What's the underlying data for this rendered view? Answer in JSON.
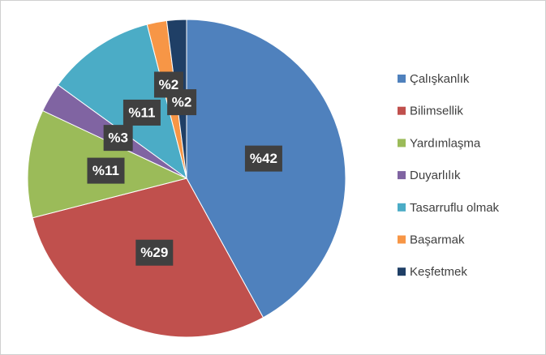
{
  "chart_data": {
    "type": "pie",
    "categories": [
      "Çalışkanlık",
      "Bilimsellik",
      "Yardımlaşma",
      "Duyarlılık",
      "Tasarruflu olmak",
      "Başarmak",
      "Keşfetmek"
    ],
    "values": [
      42,
      29,
      11,
      3,
      11,
      2,
      2
    ],
    "value_labels": [
      "%42",
      "%29",
      "%11",
      "%3",
      "%11",
      "%2",
      "%2"
    ],
    "colors": [
      "#4f81bd",
      "#c0504d",
      "#9bbb59",
      "#8064a2",
      "#4bacc6",
      "#f79646",
      "#1f3f66"
    ],
    "legend": "right"
  }
}
